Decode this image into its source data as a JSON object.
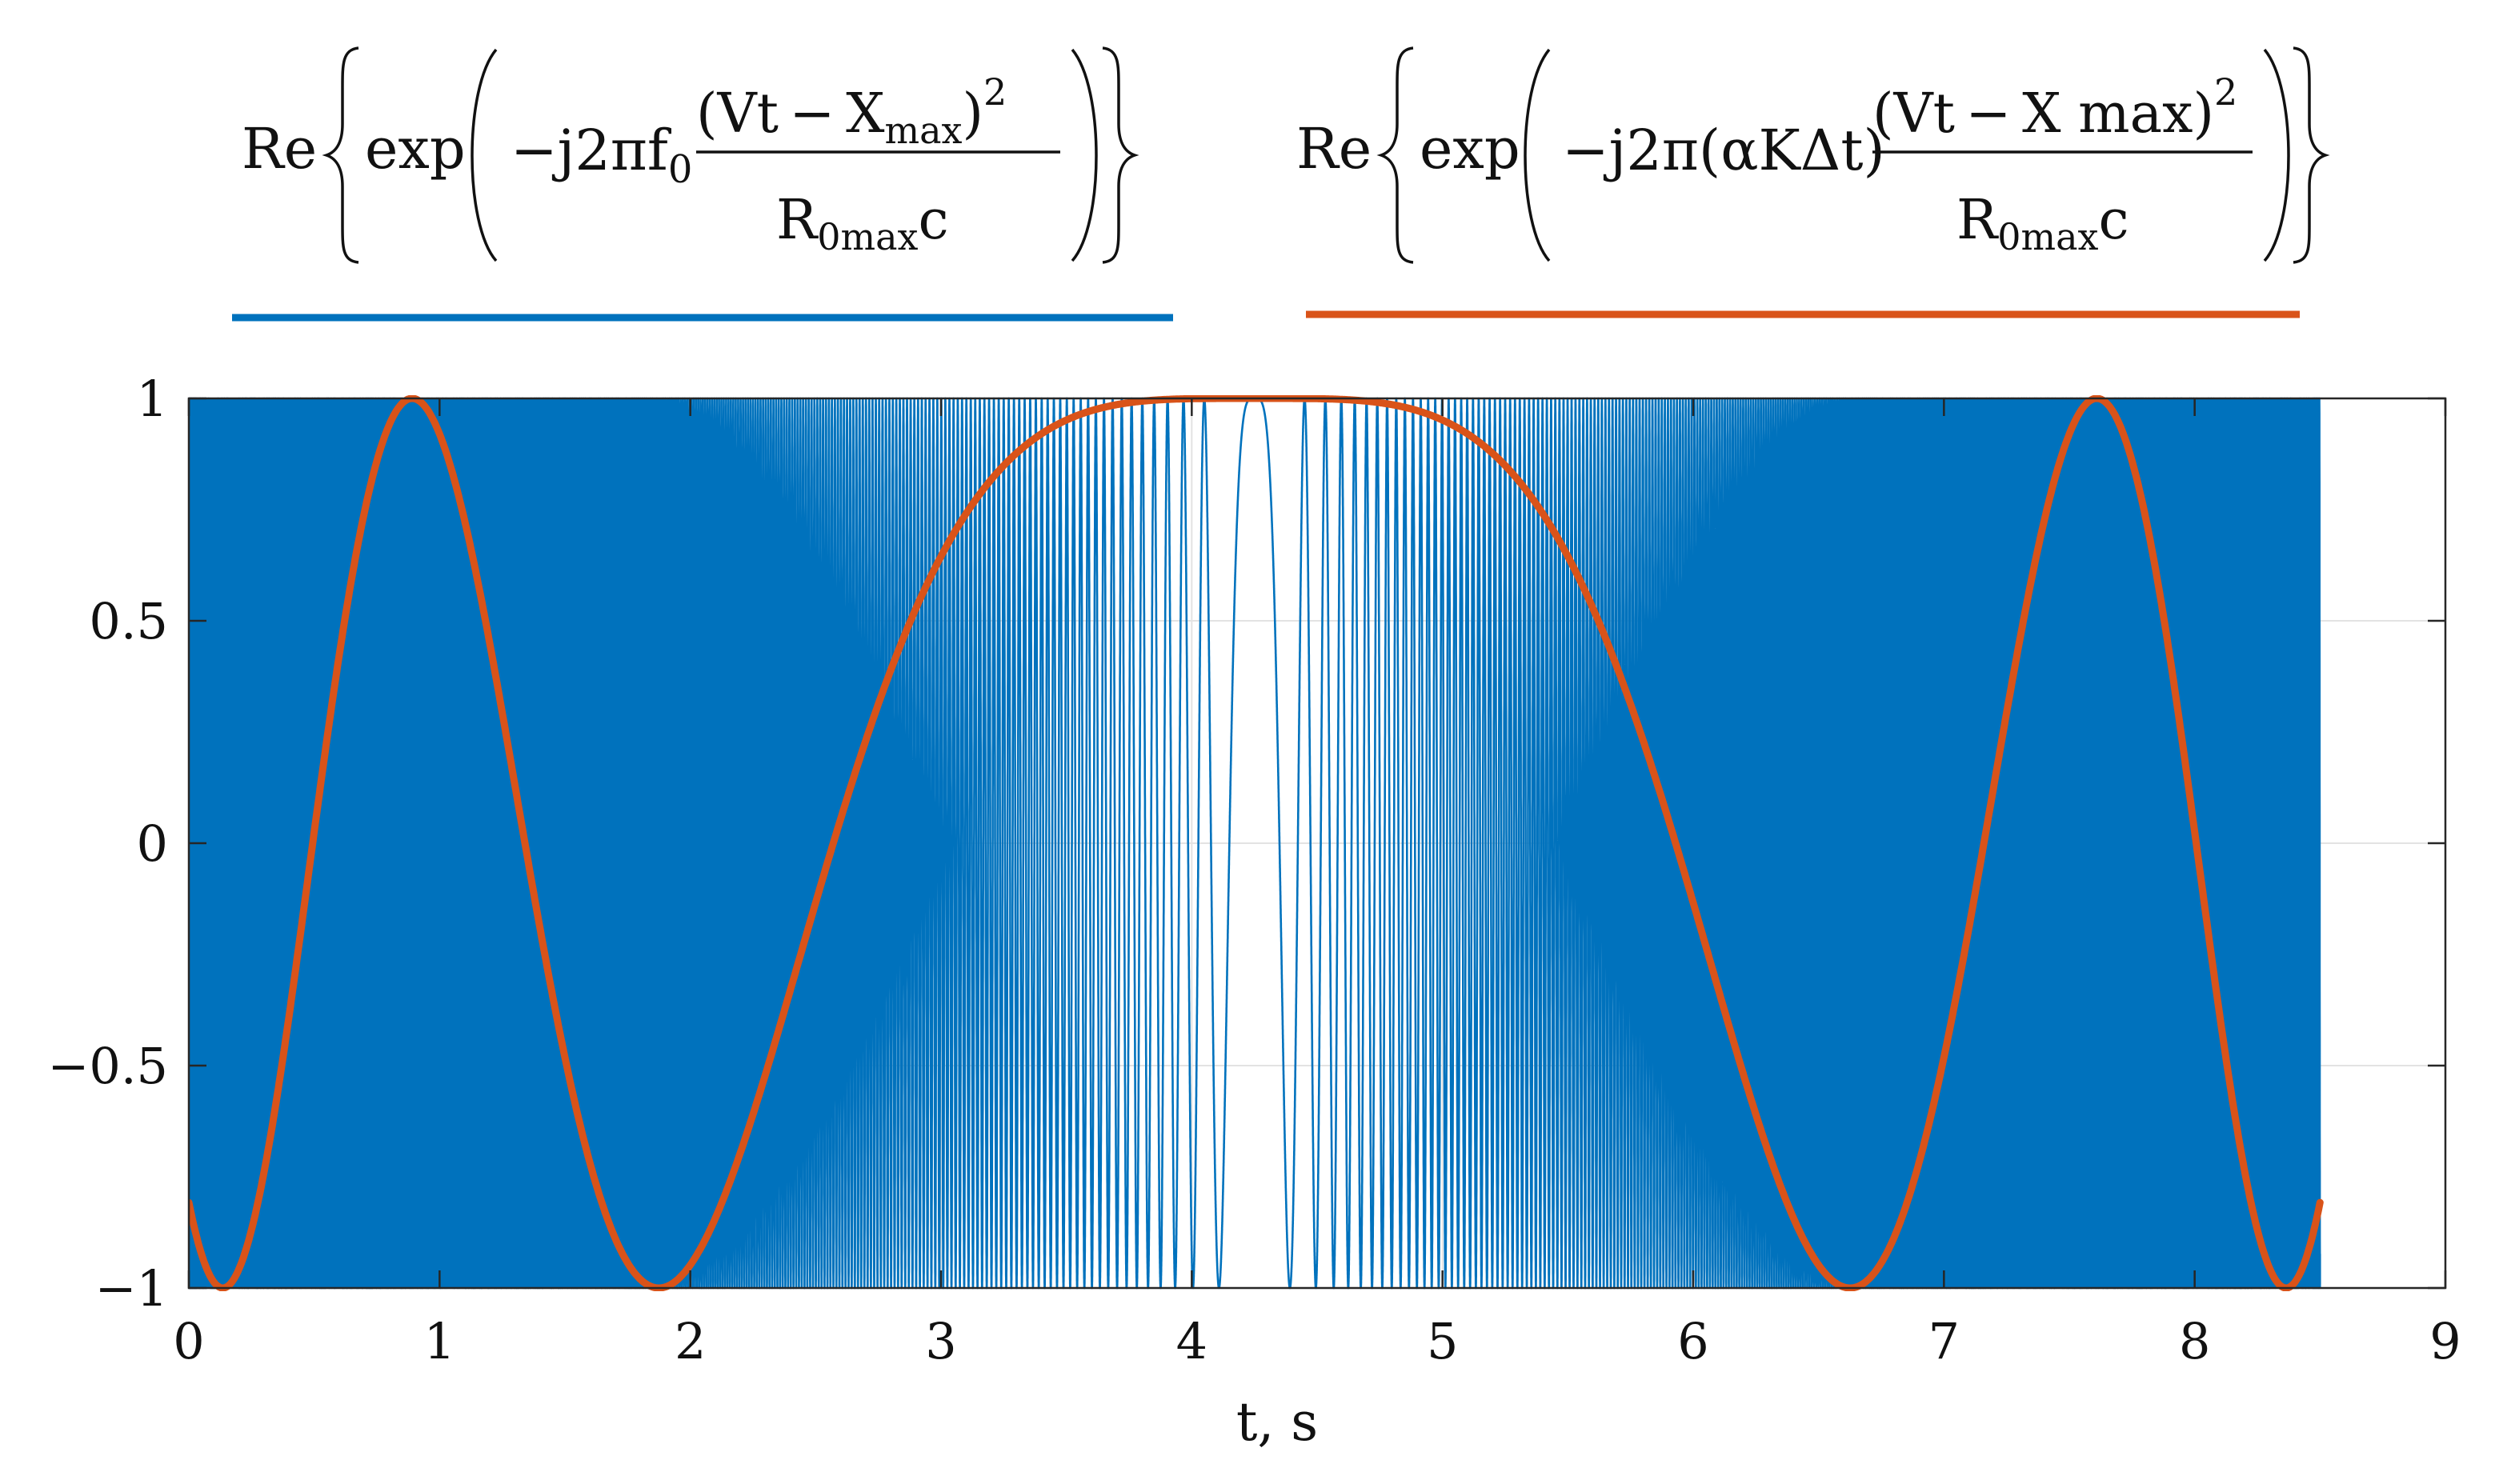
{
  "chart_data": {
    "type": "line",
    "title": "",
    "xlabel": "t, s",
    "ylabel": "",
    "xlim": [
      0,
      9
    ],
    "ylim": [
      -1,
      1
    ],
    "x_ticks": [
      "0",
      "1",
      "2",
      "3",
      "4",
      "5",
      "6",
      "7",
      "8",
      "9"
    ],
    "y_ticks": [
      "1",
      "0.5",
      "0",
      "−0.5",
      "−1"
    ],
    "grid": true,
    "legend": "top, as formulas above colored lines",
    "t_range": [
      0,
      8.5
    ],
    "center_t": 4.25,
    "series": [
      {
        "formula": "Re{exp(−j2πf₀ (Vt − X_max)² / (R_0max c))}",
        "color": "#0072BD",
        "chirp_rate": 25,
        "phase_form": "cos(2π · chirp_rate · (t − center_t)²)"
      },
      {
        "formula": "Re{exp(−j2π(αKΔt) (Vt − X max)² / (R_0max c))}",
        "color": "#D95319",
        "chirp_rate": 0.0886,
        "phase_form": "cos(2π · chirp_rate · (t − center_t)²)"
      }
    ]
  },
  "formula_left": {
    "re": "Re",
    "exp": "exp",
    "prefix": "−j2πf",
    "sub0": "0",
    "num_a": "(Vt − X",
    "num_sub": "max",
    "num_b": ")",
    "power": "2",
    "den_a": "R",
    "den_sub": "0max",
    "den_b": "c"
  },
  "formula_right": {
    "re": "Re",
    "exp": "exp",
    "prefix": "−j2π(αKΔt)",
    "num": "(Vt − X max)",
    "power": "2",
    "den_a": "R",
    "den_sub": "0max",
    "den_b": "c"
  }
}
